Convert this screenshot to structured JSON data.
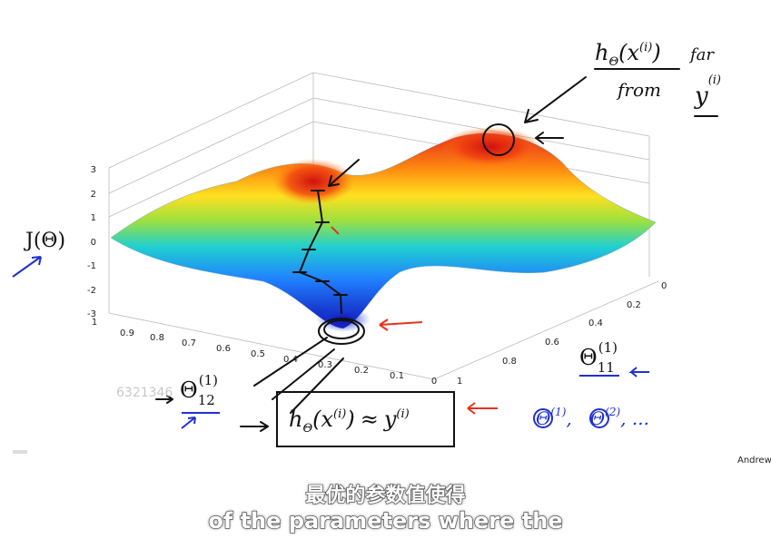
{
  "plot": {
    "z_ticks": [
      3,
      2,
      1,
      0,
      -1,
      -2,
      -3
    ],
    "x_ticks": [
      1,
      0.9,
      0.8,
      0.7,
      0.6,
      0.5,
      0.4,
      0.3,
      0.2,
      0.1,
      0
    ],
    "y_ticks": [
      0,
      0.2,
      0.4,
      0.6,
      0.8,
      1
    ],
    "z_label": "J(Θ)",
    "x_label": {
      "symbol": "Θ",
      "subscript": "12",
      "superscript": "(1)"
    },
    "y_label": {
      "symbol": "Θ",
      "subscript": "11",
      "superscript": "(1)"
    }
  },
  "annotations": {
    "far": {
      "h": "h",
      "theta": "Θ",
      "x": "(x",
      "i": "(i)",
      "close": ")",
      "far": "far",
      "from": "from",
      "y": "y",
      "yi": "(i)"
    },
    "near": {
      "h": "h",
      "theta": "Θ",
      "x": "(x",
      "i": "(i)",
      "close": ")",
      "approx": "≈",
      "y": "y",
      "yi": "(i)"
    },
    "thetas": {
      "t1": "Θ",
      "s1": "(1)",
      "sep": ",",
      "t2": "Θ",
      "s2": "(2)",
      "rest": ", ..."
    }
  },
  "watermark": "6321346",
  "credit": "Andrew",
  "subtitles": {
    "zh": "最优的参数值使得",
    "en": "of the parameters where the"
  }
}
